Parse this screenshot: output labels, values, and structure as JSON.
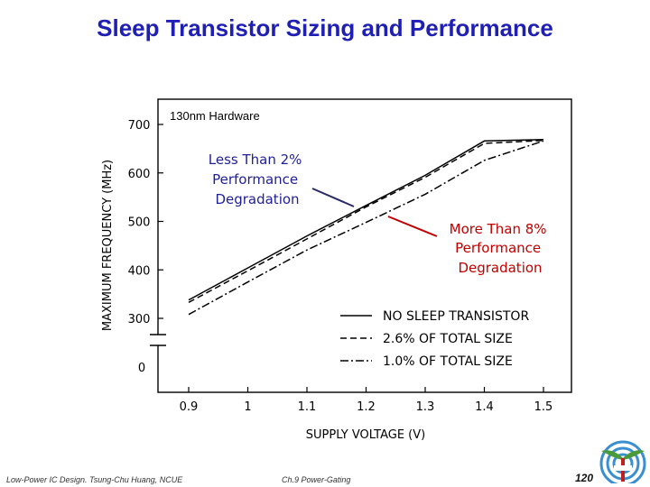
{
  "slide": {
    "title": "Sleep Transistor Sizing and Performance",
    "footer_left": "Low-Power IC Design. Tsung-Chu Huang, NCUE",
    "footer_mid": "Ch.9 Power-Gating",
    "page_number": "120"
  },
  "chart_data": {
    "type": "line",
    "title": "",
    "xlabel": "SUPPLY VOLTAGE (V)",
    "ylabel": "MAXIMUM FREQUENCY (MHz)",
    "xlim": [
      0.85,
      1.55
    ],
    "ylim": [
      300,
      725
    ],
    "x_ticks": [
      0.9,
      1.0,
      1.1,
      1.2,
      1.3,
      1.4,
      1.5
    ],
    "x_tick_labels": [
      "0.9",
      "1",
      "1.1",
      "1.2",
      "1.3",
      "1.4",
      "1.5"
    ],
    "y_ticks": [
      300,
      400,
      500,
      600,
      700
    ],
    "y_tick_labels": [
      "300",
      "400",
      "500",
      "600",
      "700"
    ],
    "y_axis_break_label": "0",
    "grid": false,
    "legend_position": "bottom-right",
    "series": [
      {
        "name": "NO SLEEP TRANSISTOR",
        "style": "solid",
        "x": [
          0.9,
          1.0,
          1.1,
          1.2,
          1.3,
          1.4,
          1.5
        ],
        "y": [
          338,
          404,
          470,
          533,
          595,
          666,
          669
        ]
      },
      {
        "name": "2.6% OF TOTAL SIZE",
        "style": "dashed",
        "x": [
          0.9,
          1.0,
          1.1,
          1.2,
          1.3,
          1.4,
          1.5
        ],
        "y": [
          333,
          398,
          464,
          530,
          591,
          661,
          667
        ]
      },
      {
        "name": "1.0% OF TOTAL SIZE",
        "style": "dashdot",
        "x": [
          0.9,
          1.0,
          1.1,
          1.2,
          1.3,
          1.4,
          1.5
        ],
        "y": [
          308,
          375,
          441,
          498,
          556,
          626,
          666
        ]
      }
    ],
    "annotations": [
      {
        "text": "130nm Hardware"
      },
      {
        "text": "Less Than 2% Performance Degradation",
        "color": "#1f1f99"
      },
      {
        "text": "More Than 8% Performance Degradation",
        "color": "#c00000"
      }
    ]
  }
}
